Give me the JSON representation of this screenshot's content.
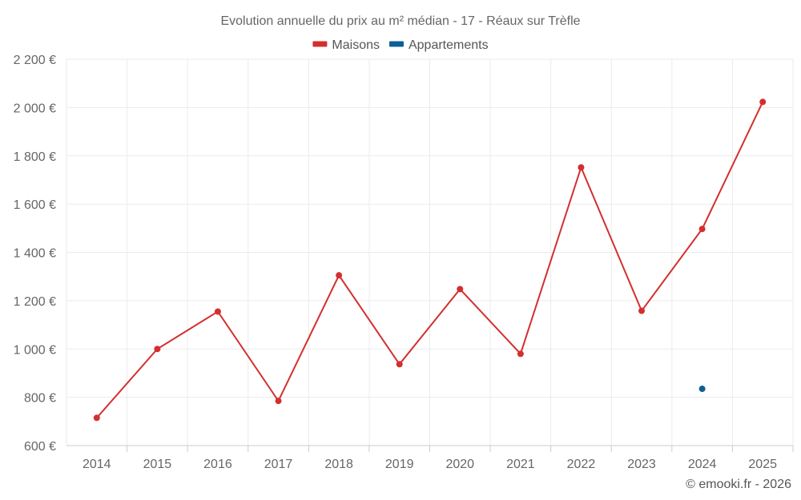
{
  "chart_data": {
    "type": "line",
    "title": "Evolution annuelle du prix au m² médian - 17 - Réaux sur Trèfle",
    "xlabel": "",
    "ylabel": "",
    "categories": [
      "2014",
      "2015",
      "2016",
      "2017",
      "2018",
      "2019",
      "2020",
      "2021",
      "2022",
      "2023",
      "2024",
      "2025"
    ],
    "series": [
      {
        "name": "Maisons",
        "color": "#d32f2f",
        "values": [
          715,
          1000,
          1155,
          785,
          1305,
          937,
          1248,
          980,
          1752,
          1158,
          1497,
          2023
        ]
      },
      {
        "name": "Appartements",
        "color": "#0d5f97",
        "values": [
          null,
          null,
          null,
          null,
          null,
          null,
          null,
          null,
          null,
          null,
          835,
          null
        ]
      }
    ],
    "ylim": [
      600,
      2200
    ],
    "yticks": [
      600,
      800,
      1000,
      1200,
      1400,
      1600,
      1800,
      2000,
      2200
    ],
    "ytick_labels": [
      "600 €",
      "800 €",
      "1 000 €",
      "1 200 €",
      "1 400 €",
      "1 600 €",
      "1 800 €",
      "2 000 €",
      "2 200 €"
    ],
    "grid": true,
    "legend_position": "top-center"
  },
  "credit": "© emooki.fr - 2026"
}
